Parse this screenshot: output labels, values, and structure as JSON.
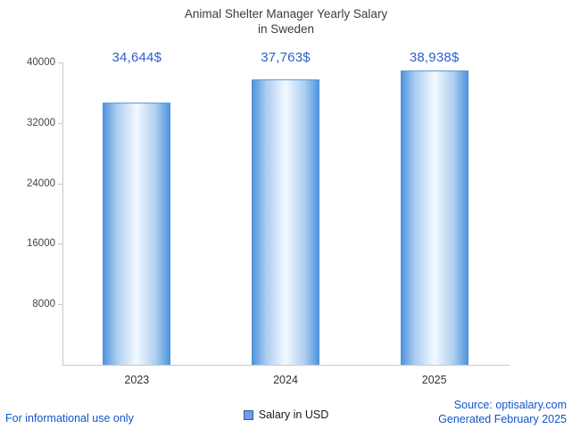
{
  "title": {
    "line1": "Animal Shelter Manager Yearly Salary",
    "line2": "in Sweden"
  },
  "chart_data": {
    "type": "bar",
    "title": "Animal Shelter Manager Yearly Salary in Sweden",
    "categories": [
      "2023",
      "2024",
      "2025"
    ],
    "values": [
      34644,
      37763,
      38938
    ],
    "value_labels": [
      "34,644$",
      "37,763$",
      "38,938$"
    ],
    "xlabel": "",
    "ylabel": "",
    "ylim": [
      0,
      40000
    ],
    "yticks": [
      8000,
      16000,
      24000,
      32000,
      40000
    ],
    "grid": false,
    "legend_position": "bottom",
    "legend": [
      {
        "label": "Salary in USD",
        "color": "#6d9eeb"
      }
    ],
    "bar_edge_color": "#4a91dc",
    "bar_center_color": "#f3f9ff",
    "annotation_color": "#2a5fce"
  },
  "footer": {
    "disclaimer": "For informational use only",
    "source": "Source: optisalary.com",
    "generated": "Generated February 2025"
  }
}
